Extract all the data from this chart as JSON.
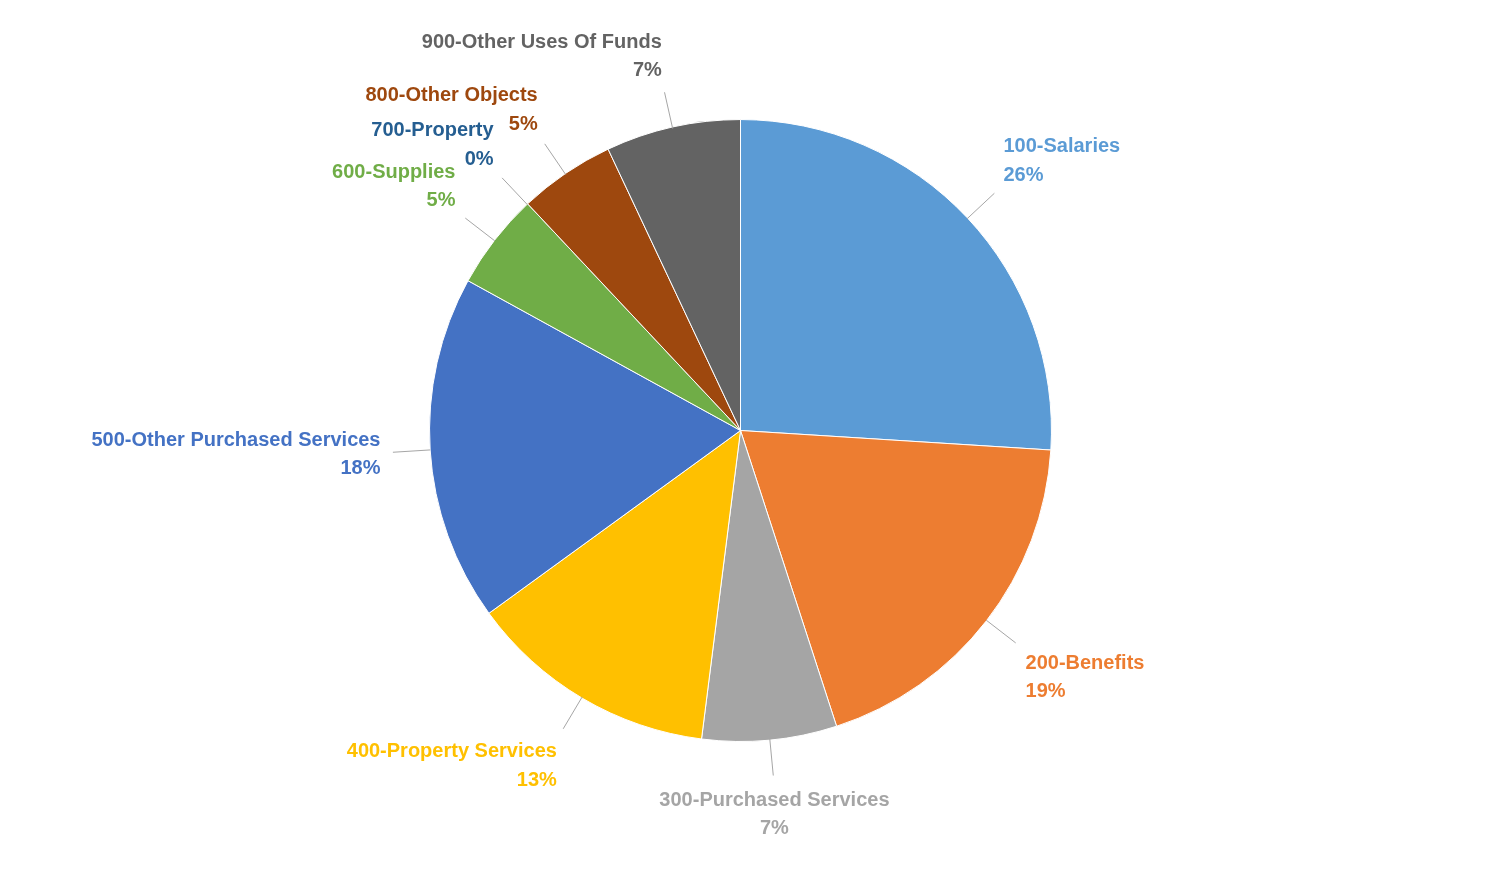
{
  "chart_data": {
    "type": "pie",
    "categories": [
      "100-Salaries",
      "200-Benefits",
      "300-Purchased Services",
      "400-Property Services",
      "500-Other Purchased Services",
      "600-Supplies",
      "700-Property",
      "800-Other Objects",
      "900-Other Uses Of Funds"
    ],
    "values": [
      26,
      19,
      7,
      13,
      18,
      5,
      0,
      5,
      7
    ],
    "value_labels": [
      "26%",
      "19%",
      "7%",
      "13%",
      "18%",
      "5%",
      "0%",
      "5%",
      "7%"
    ],
    "colors": [
      "#5b9bd5",
      "#ed7d31",
      "#a5a5a5",
      "#ffc000",
      "#4472c4",
      "#70ad47",
      "#255e91",
      "#9e480e",
      "#636363"
    ],
    "legend": false
  }
}
